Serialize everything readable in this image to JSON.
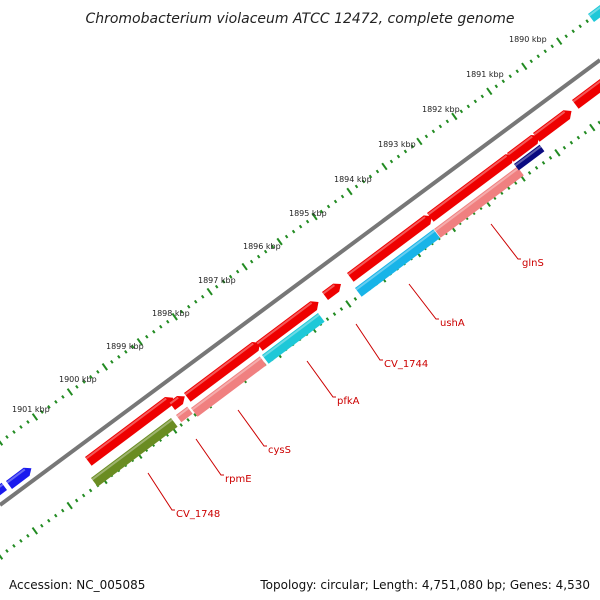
{
  "title": "Chromobacterium violaceum ATCC 12472, complete genome",
  "ticks": [
    {
      "label": "1890 kbp",
      "kbp": 1890
    },
    {
      "label": "1891 kbp",
      "kbp": 1891
    },
    {
      "label": "1892 kbp",
      "kbp": 1892
    },
    {
      "label": "1893 kbp",
      "kbp": 1893
    },
    {
      "label": "1894 kbp",
      "kbp": 1894
    },
    {
      "label": "1895 kbp",
      "kbp": 1895
    },
    {
      "label": "1896 kbp",
      "kbp": 1896
    },
    {
      "label": "1897 kbp",
      "kbp": 1897
    },
    {
      "label": "1898 kbp",
      "kbp": 1898
    },
    {
      "label": "1899 kbp",
      "kbp": 1899
    },
    {
      "label": "1900 kbp",
      "kbp": 1900
    },
    {
      "label": "1901 kbp",
      "kbp": 1901
    }
  ],
  "gene_labels": [
    "glnS",
    "ushA",
    "CV_1744",
    "pfkA",
    "cysS",
    "rpmE",
    "CV_1748"
  ],
  "colors": {
    "cds": "#ee0000",
    "gene_light": "#f08080",
    "cyan": "#1ec8d8",
    "blue": "#1a1aee",
    "navy": "#0a0a80",
    "olive": "#6a8c22",
    "backbone": "#777777",
    "ticks": "#228b22",
    "label": "#cc0000"
  },
  "accession": "Accession: NC_005085",
  "summary": "Topology: circular; Length: 4,751,080 bp; Genes: 4,530"
}
